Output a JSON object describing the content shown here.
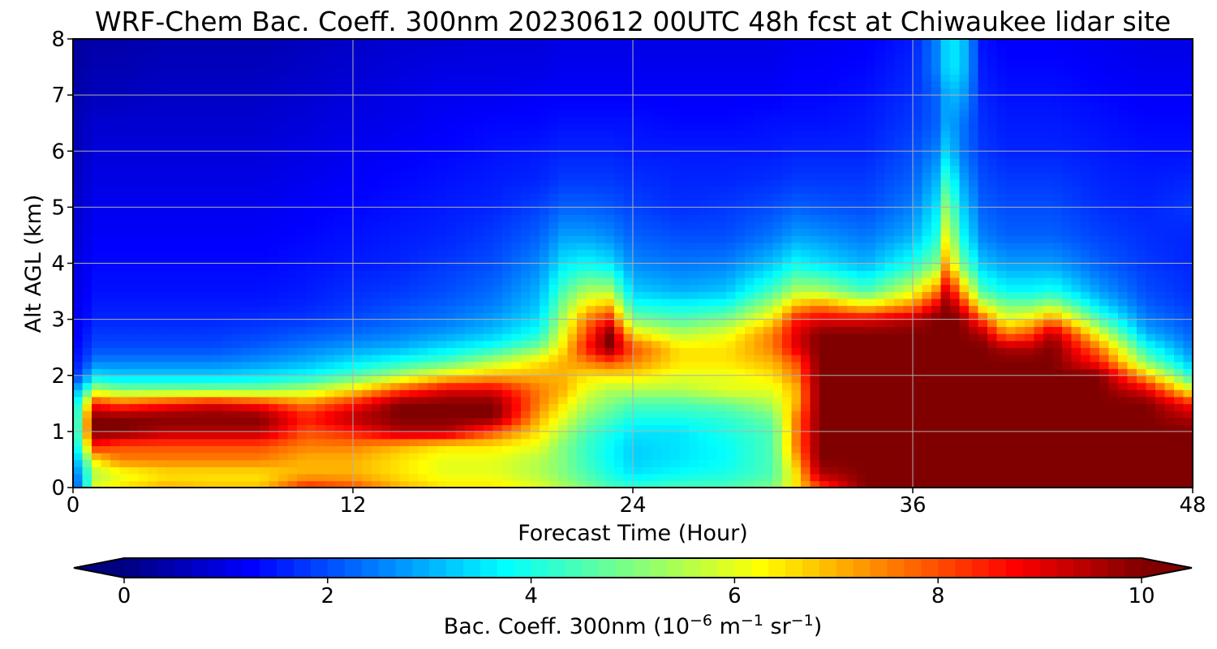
{
  "chart_data": {
    "type": "heatmap",
    "title": "WRF-Chem Bac. Coeff. 300nm  20230612 00UTC 48h fcst at Chiwaukee lidar site",
    "xlabel": "Forecast Time (Hour)",
    "ylabel": "Alt AGL (km)",
    "xlim": [
      0,
      48
    ],
    "ylim": [
      0,
      8
    ],
    "xticks": [
      0,
      12,
      24,
      36,
      48
    ],
    "yticks": [
      0,
      1,
      2,
      3,
      4,
      5,
      6,
      7,
      8
    ],
    "grid": true,
    "colorbar": {
      "orientation": "horizontal",
      "placement": "bottom",
      "label_main": "Bac. Coeff. 300nm  (10",
      "label_exp1": "−6",
      "label_mid": " m",
      "label_exp2": "−1",
      "label_mid2": " sr",
      "label_exp3": "−1",
      "label_end": ")",
      "range": [
        0,
        10
      ],
      "ticks": [
        0,
        2,
        4,
        6,
        8,
        10
      ],
      "extend": "both",
      "colormap": "jet"
    },
    "x": [
      0,
      1,
      2,
      4,
      6,
      8,
      10,
      12,
      14,
      16,
      18,
      20,
      21,
      22,
      23,
      24,
      26,
      28,
      30,
      31,
      32,
      34,
      36,
      37,
      37.5,
      38,
      39,
      40,
      41,
      42,
      44,
      46,
      48
    ],
    "y": [
      0,
      0.25,
      0.5,
      0.75,
      1.0,
      1.25,
      1.5,
      1.75,
      2.0,
      2.25,
      2.5,
      2.75,
      3.0,
      3.25,
      3.5,
      4.0,
      4.5,
      5.0,
      5.5,
      6.0,
      6.5,
      7.0,
      7.5,
      8.0
    ],
    "z": [
      [
        1.5,
        6.0,
        6.5,
        7.0,
        6.8,
        6.8,
        8.5,
        8.0,
        7.0,
        6.5,
        6.5,
        6.0,
        5.5,
        5.0,
        4.5,
        4.3,
        4.5,
        4.5,
        5.0,
        6.5,
        8.0,
        10.0,
        10.0,
        10.0,
        10.0,
        10.0,
        10.0,
        10.0,
        10.0,
        10.0,
        10.0,
        10.0,
        10.0
      ],
      [
        2.0,
        5.5,
        6.0,
        6.5,
        6.5,
        6.5,
        7.0,
        7.0,
        6.5,
        6.0,
        6.0,
        5.5,
        5.0,
        4.5,
        4.0,
        3.5,
        3.8,
        4.0,
        4.5,
        6.5,
        9.5,
        10.0,
        10.0,
        10.0,
        10.0,
        10.0,
        10.0,
        10.0,
        10.0,
        10.0,
        10.0,
        10.0,
        10.0
      ],
      [
        2.5,
        6.5,
        7.5,
        7.5,
        7.5,
        7.5,
        7.0,
        7.0,
        6.5,
        6.0,
        6.0,
        5.5,
        5.0,
        4.3,
        3.8,
        3.3,
        3.5,
        3.8,
        4.5,
        7.0,
        10.0,
        10.0,
        10.0,
        10.0,
        10.0,
        10.0,
        10.0,
        10.0,
        10.0,
        10.0,
        10.0,
        10.0,
        10.0
      ],
      [
        3.0,
        8.5,
        8.0,
        8.0,
        8.0,
        8.0,
        7.5,
        7.5,
        7.0,
        6.5,
        6.5,
        6.0,
        5.0,
        4.3,
        3.8,
        3.3,
        3.5,
        3.8,
        4.5,
        7.5,
        10.0,
        10.0,
        10.0,
        10.0,
        10.0,
        10.0,
        10.0,
        10.0,
        10.0,
        10.0,
        10.0,
        10.0,
        10.0
      ],
      [
        3.0,
        10.0,
        10.0,
        9.5,
        9.5,
        9.5,
        8.0,
        8.5,
        9.5,
        9.5,
        8.0,
        6.5,
        5.5,
        4.5,
        4.0,
        3.5,
        3.5,
        4.0,
        4.5,
        7.5,
        10.0,
        10.0,
        10.0,
        10.0,
        10.0,
        10.0,
        10.0,
        10.0,
        10.0,
        10.0,
        10.0,
        10.0,
        10.0
      ],
      [
        3.0,
        10.0,
        10.0,
        10.0,
        10.0,
        10.0,
        8.5,
        9.5,
        10.0,
        10.0,
        10.0,
        7.0,
        6.0,
        5.0,
        4.5,
        4.0,
        4.0,
        4.2,
        4.8,
        7.5,
        10.0,
        10.0,
        10.0,
        10.0,
        10.0,
        10.0,
        10.0,
        10.0,
        10.0,
        10.0,
        10.0,
        10.0,
        9.5
      ],
      [
        3.0,
        8.5,
        8.0,
        8.5,
        9.0,
        8.5,
        7.5,
        8.5,
        10.0,
        10.0,
        10.0,
        7.5,
        6.5,
        5.5,
        5.0,
        4.5,
        4.5,
        4.8,
        5.5,
        7.0,
        10.0,
        10.0,
        10.0,
        10.0,
        10.0,
        10.0,
        10.0,
        10.0,
        10.0,
        10.0,
        10.0,
        10.0,
        8.5
      ],
      [
        2.5,
        5.5,
        5.0,
        5.0,
        5.0,
        5.0,
        5.5,
        6.5,
        8.0,
        9.0,
        9.0,
        7.5,
        7.0,
        6.0,
        5.5,
        5.5,
        5.5,
        6.0,
        6.0,
        7.0,
        10.0,
        10.0,
        10.0,
        10.0,
        10.0,
        10.0,
        10.0,
        10.0,
        10.0,
        10.0,
        10.0,
        9.0,
        6.0
      ],
      [
        1.5,
        3.5,
        3.3,
        3.3,
        3.3,
        3.5,
        3.8,
        4.5,
        5.5,
        6.5,
        7.0,
        7.0,
        7.0,
        6.5,
        6.5,
        6.5,
        6.0,
        6.0,
        6.5,
        7.5,
        10.0,
        10.0,
        10.0,
        10.0,
        10.0,
        10.0,
        10.0,
        10.0,
        10.0,
        10.0,
        10.0,
        7.0,
        4.0
      ],
      [
        1.3,
        2.5,
        2.5,
        2.5,
        2.5,
        2.7,
        3.0,
        3.5,
        4.0,
        4.5,
        5.5,
        6.5,
        7.0,
        7.5,
        8.0,
        7.5,
        6.5,
        6.5,
        7.0,
        8.0,
        10.0,
        10.0,
        10.0,
        10.0,
        10.0,
        10.0,
        10.0,
        10.0,
        10.0,
        10.0,
        8.5,
        5.0,
        3.0
      ],
      [
        1.2,
        2.0,
        2.0,
        2.0,
        2.0,
        2.2,
        2.5,
        2.8,
        3.0,
        3.5,
        4.0,
        5.0,
        6.5,
        8.5,
        10.0,
        8.0,
        6.5,
        6.5,
        7.5,
        9.0,
        10.0,
        10.0,
        10.0,
        10.0,
        10.0,
        10.0,
        10.0,
        9.5,
        9.5,
        10.0,
        7.5,
        4.0,
        2.5
      ],
      [
        1.1,
        1.8,
        1.8,
        1.8,
        1.8,
        1.9,
        2.1,
        2.3,
        2.5,
        2.8,
        3.2,
        4.0,
        6.0,
        8.0,
        10.0,
        6.5,
        5.5,
        6.0,
        7.5,
        9.0,
        10.0,
        10.0,
        10.0,
        10.0,
        10.0,
        10.0,
        9.5,
        7.5,
        8.0,
        9.5,
        6.0,
        3.0,
        2.2
      ],
      [
        1.0,
        1.6,
        1.6,
        1.6,
        1.6,
        1.7,
        1.8,
        2.0,
        2.2,
        2.4,
        2.8,
        3.5,
        5.5,
        7.5,
        8.5,
        5.0,
        4.5,
        5.0,
        6.5,
        8.5,
        9.0,
        9.0,
        9.5,
        10.0,
        10.0,
        10.0,
        8.0,
        6.0,
        6.5,
        7.5,
        4.5,
        2.5,
        2.0
      ],
      [
        1.0,
        1.5,
        1.5,
        1.5,
        1.5,
        1.5,
        1.6,
        1.8,
        2.0,
        2.2,
        2.5,
        3.2,
        5.0,
        6.5,
        7.0,
        4.0,
        3.8,
        4.0,
        5.5,
        7.0,
        7.5,
        6.5,
        7.5,
        9.0,
        10.0,
        9.0,
        6.0,
        5.0,
        5.0,
        5.5,
        3.5,
        2.2,
        1.8
      ],
      [
        0.9,
        1.4,
        1.4,
        1.4,
        1.4,
        1.4,
        1.5,
        1.7,
        1.8,
        2.0,
        2.3,
        3.0,
        4.5,
        5.5,
        5.5,
        3.3,
        3.0,
        3.2,
        4.5,
        5.5,
        5.5,
        4.5,
        6.0,
        7.5,
        9.5,
        7.5,
        4.5,
        3.8,
        3.8,
        4.0,
        2.8,
        2.0,
        1.7
      ],
      [
        0.9,
        1.3,
        1.3,
        1.3,
        1.3,
        1.3,
        1.4,
        1.5,
        1.6,
        1.8,
        2.0,
        2.6,
        3.5,
        3.8,
        3.5,
        2.6,
        2.4,
        2.5,
        3.2,
        3.8,
        3.5,
        3.0,
        4.0,
        5.0,
        7.5,
        5.0,
        3.2,
        2.8,
        2.8,
        2.8,
        2.2,
        1.8,
        1.6
      ],
      [
        0.8,
        1.2,
        1.2,
        1.2,
        1.2,
        1.2,
        1.3,
        1.4,
        1.5,
        1.6,
        1.8,
        2.2,
        2.8,
        2.8,
        2.6,
        2.2,
        2.0,
        2.0,
        2.4,
        2.8,
        2.7,
        2.4,
        3.0,
        4.0,
        6.5,
        4.0,
        2.5,
        2.2,
        2.2,
        2.2,
        1.9,
        1.7,
        1.6
      ],
      [
        0.7,
        1.1,
        1.1,
        1.1,
        1.1,
        1.1,
        1.2,
        1.3,
        1.4,
        1.5,
        1.6,
        1.9,
        2.2,
        2.2,
        2.1,
        1.9,
        1.7,
        1.8,
        2.0,
        2.2,
        2.1,
        2.0,
        2.5,
        3.5,
        5.5,
        3.5,
        2.2,
        2.0,
        2.0,
        2.0,
        1.7,
        1.6,
        1.8
      ],
      [
        0.6,
        1.0,
        1.0,
        1.0,
        1.0,
        1.0,
        1.1,
        1.2,
        1.3,
        1.4,
        1.5,
        1.6,
        1.8,
        1.8,
        1.8,
        1.7,
        1.6,
        1.6,
        1.7,
        1.8,
        1.8,
        1.8,
        2.2,
        3.0,
        4.5,
        3.0,
        2.0,
        1.8,
        1.8,
        1.8,
        1.6,
        1.5,
        1.6
      ],
      [
        0.5,
        0.9,
        0.9,
        0.9,
        0.9,
        0.9,
        1.0,
        1.1,
        1.2,
        1.3,
        1.4,
        1.5,
        1.6,
        1.6,
        1.6,
        1.5,
        1.5,
        1.5,
        1.5,
        1.6,
        1.6,
        1.6,
        2.0,
        2.5,
        3.5,
        2.5,
        1.8,
        1.6,
        1.6,
        1.6,
        1.5,
        1.4,
        1.4
      ],
      [
        0.5,
        0.8,
        0.8,
        0.8,
        0.8,
        0.8,
        0.9,
        1.0,
        1.1,
        1.2,
        1.3,
        1.3,
        1.4,
        1.4,
        1.4,
        1.4,
        1.3,
        1.3,
        1.4,
        1.4,
        1.4,
        1.5,
        1.8,
        2.2,
        3.0,
        2.5,
        1.7,
        1.5,
        1.5,
        1.5,
        1.4,
        1.3,
        1.3
      ],
      [
        0.4,
        0.6,
        0.6,
        0.7,
        0.7,
        0.7,
        0.8,
        0.9,
        1.0,
        1.1,
        1.1,
        1.2,
        1.2,
        1.2,
        1.2,
        1.2,
        1.2,
        1.2,
        1.2,
        1.3,
        1.3,
        1.4,
        1.7,
        2.2,
        3.0,
        3.0,
        1.6,
        1.4,
        1.4,
        1.4,
        1.3,
        1.2,
        1.2
      ],
      [
        0.3,
        0.5,
        0.5,
        0.6,
        0.6,
        0.6,
        0.7,
        0.8,
        0.9,
        1.0,
        1.0,
        1.0,
        1.1,
        1.1,
        1.1,
        1.1,
        1.1,
        1.1,
        1.1,
        1.2,
        1.2,
        1.3,
        1.6,
        2.5,
        3.5,
        3.5,
        1.5,
        1.3,
        1.3,
        1.3,
        1.2,
        1.1,
        1.1
      ],
      [
        0.3,
        0.4,
        0.4,
        0.5,
        0.5,
        0.5,
        0.6,
        0.7,
        0.8,
        0.8,
        0.9,
        0.9,
        1.0,
        1.0,
        1.0,
        1.0,
        1.0,
        1.0,
        1.0,
        1.1,
        1.1,
        1.2,
        1.5,
        2.5,
        3.5,
        3.5,
        1.4,
        1.2,
        1.2,
        1.2,
        1.1,
        1.0,
        1.0
      ]
    ]
  }
}
